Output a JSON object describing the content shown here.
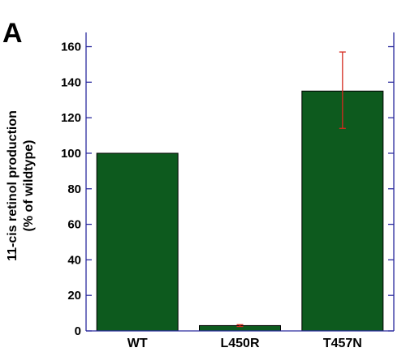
{
  "panel_label": "A",
  "chart_data": {
    "type": "bar",
    "categories": [
      "WT",
      "L450R",
      "T457N"
    ],
    "values": [
      100,
      3,
      135
    ],
    "error_low": [
      null,
      2.5,
      114
    ],
    "error_high": [
      null,
      3.5,
      157
    ],
    "ylabel_line1": "11-cis retinol production",
    "ylabel_line2": "(% of wildtype)",
    "ylim": [
      0,
      168
    ],
    "yticks": [
      0,
      20,
      40,
      60,
      80,
      100,
      120,
      140,
      160
    ],
    "bar_color": "#0d5a1e",
    "axis_color": "#2b2b9e",
    "error_color": "#d42a1f",
    "grid": false
  }
}
